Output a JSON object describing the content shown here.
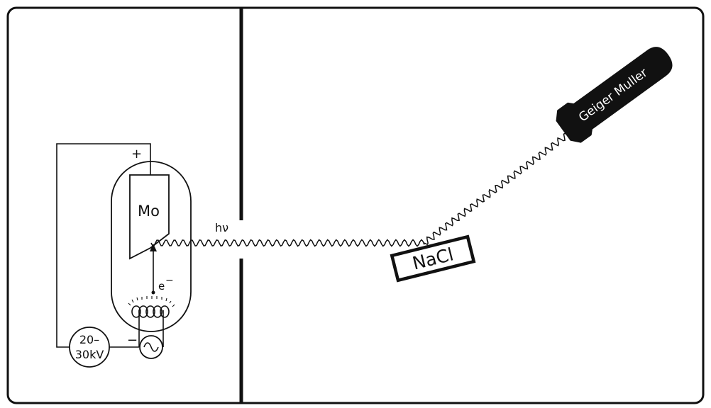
{
  "labels": {
    "anode_material": "Mo",
    "anode_polarity": "+",
    "cathode_polarity": "−",
    "electron": "e",
    "electron_charge": "−",
    "photon": "hν",
    "supply_voltage_line1": "20–",
    "supply_voltage_line2": "30kV",
    "crystal": "NaCl",
    "detector": "Geiger Muller"
  },
  "icons": {
    "ac_source": "sine-wave-icon",
    "filament": "coil-filament-icon",
    "detector": "geiger-counter-probe-icon"
  },
  "colors": {
    "ink": "#111111",
    "background": "#ffffff"
  }
}
